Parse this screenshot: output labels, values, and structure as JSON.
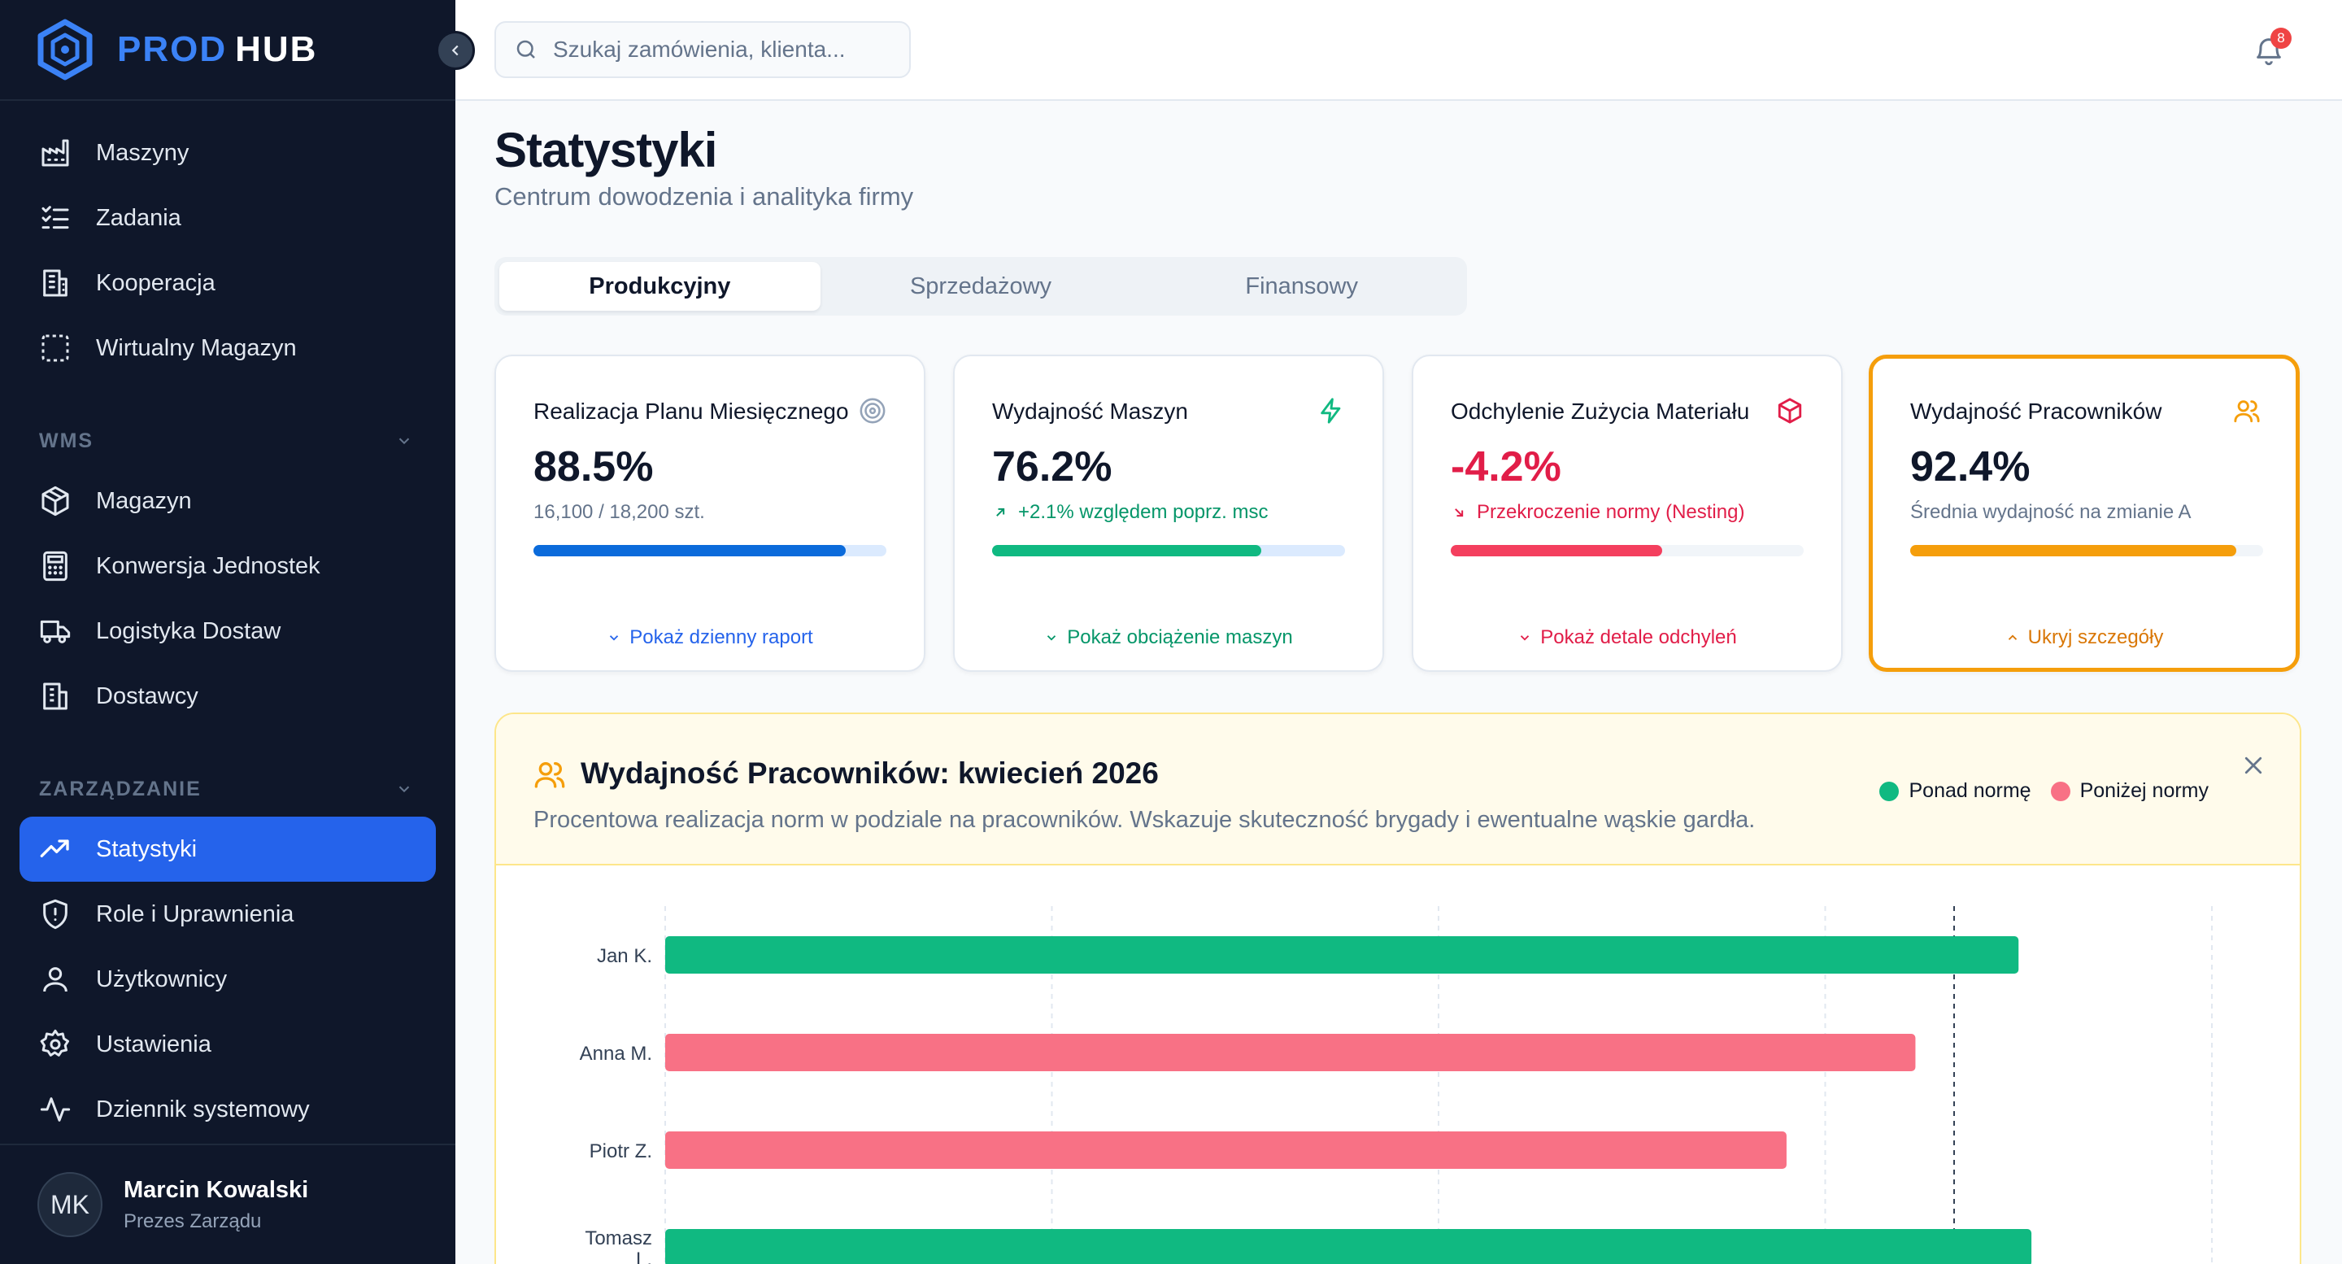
{
  "brand": {
    "part1": "PROD",
    "part2": "HUB"
  },
  "sidebar": {
    "items": [
      {
        "label": "Maszyny",
        "icon": "factory-icon"
      },
      {
        "label": "Zadania",
        "icon": "list-checks-icon"
      },
      {
        "label": "Kooperacja",
        "icon": "building-icon"
      },
      {
        "label": "Wirtualny Magazyn",
        "icon": "dashed-square-icon"
      }
    ],
    "sections": [
      {
        "label": "WMS",
        "items": [
          {
            "label": "Magazyn",
            "icon": "package-icon"
          },
          {
            "label": "Konwersja Jednostek",
            "icon": "calculator-icon"
          },
          {
            "label": "Logistyka Dostaw",
            "icon": "truck-icon"
          },
          {
            "label": "Dostawcy",
            "icon": "building-icon"
          }
        ]
      },
      {
        "label": "ZARZĄDZANIE",
        "items": [
          {
            "label": "Statystyki",
            "icon": "trending-up-icon",
            "active": true
          },
          {
            "label": "Role i Uprawnienia",
            "icon": "shield-icon"
          },
          {
            "label": "Użytkownicy",
            "icon": "user-icon"
          },
          {
            "label": "Ustawienia",
            "icon": "gear-icon"
          },
          {
            "label": "Dziennik systemowy",
            "icon": "activity-icon"
          }
        ]
      }
    ]
  },
  "user": {
    "initials": "MK",
    "name": "Marcin Kowalski",
    "role": "Prezes Zarządu"
  },
  "search": {
    "placeholder": "Szukaj zamówienia, klienta..."
  },
  "notifications": {
    "count": "8"
  },
  "page": {
    "title": "Statystyki",
    "subtitle": "Centrum dowodzenia i analityka firmy"
  },
  "tabs": [
    {
      "label": "Produkcyjny",
      "active": true
    },
    {
      "label": "Sprzedażowy",
      "active": false
    },
    {
      "label": "Finansowy",
      "active": false
    }
  ],
  "cards": [
    {
      "title": "Realizacja Planu Miesięcznego",
      "value": "88.5%",
      "sub": "16,100 / 18,200 szt.",
      "progress": 0.885,
      "link": "Pokaż dzienny raport",
      "color": "#0b6bdb",
      "track": "#dbeafe",
      "icon": "target-icon",
      "sub_color": "#64748b",
      "link_color": "#2563eb"
    },
    {
      "title": "Wydajność Maszyn",
      "value": "76.2%",
      "sub": "+2.1% względem poprz. msc",
      "progress": 0.762,
      "link": "Pokaż obciążenie maszyn",
      "color": "#10b981",
      "track": "#dbeafe",
      "icon": "lightning-icon",
      "sub_color": "#059669",
      "link_color": "#059669"
    },
    {
      "title": "Odchylenie Zużycia Materiału",
      "value": "-4.2%",
      "sub": "Przekroczenie normy (Nesting)",
      "progress": 0.6,
      "link": "Pokaż detale odchyleń",
      "color": "#f43f5e",
      "track": "#f1f5f9",
      "icon": "box-icon",
      "sub_color": "#e11d48",
      "link_color": "#e11d48",
      "value_color": "#e11d48"
    },
    {
      "title": "Wydajność Pracowników",
      "value": "92.4%",
      "sub": "Średnia wydajność na zmianie A",
      "progress": 0.924,
      "link": "Ukryj szczegóły",
      "color": "#f59e0b",
      "track": "#f1f5f9",
      "icon": "users-icon",
      "sub_color": "#64748b",
      "link_color": "#d97706",
      "selected": true
    }
  ],
  "panel": {
    "title": "Wydajność Pracowników: kwiecień 2026",
    "description": "Procentowa realizacja norm w podziale na pracowników. Wskazuje skuteczność brygady i ewentualne wąskie gardła.",
    "legend": [
      {
        "label": "Ponad normę",
        "color": "#10b981"
      },
      {
        "label": "Poniżej normy",
        "color": "#f87185"
      }
    ]
  },
  "chart_data": {
    "type": "bar",
    "orientation": "horizontal",
    "xlim": [
      0,
      120
    ],
    "reference_line": 100,
    "grid": true,
    "categories": [
      "Jan K.",
      "Anna M.",
      "Piotr Z.",
      "Tomasz L."
    ],
    "values": [
      105,
      97,
      87,
      106
    ],
    "status": [
      "above",
      "below",
      "below",
      "above"
    ],
    "colors": {
      "above": "#10b981",
      "below": "#f87185"
    }
  }
}
